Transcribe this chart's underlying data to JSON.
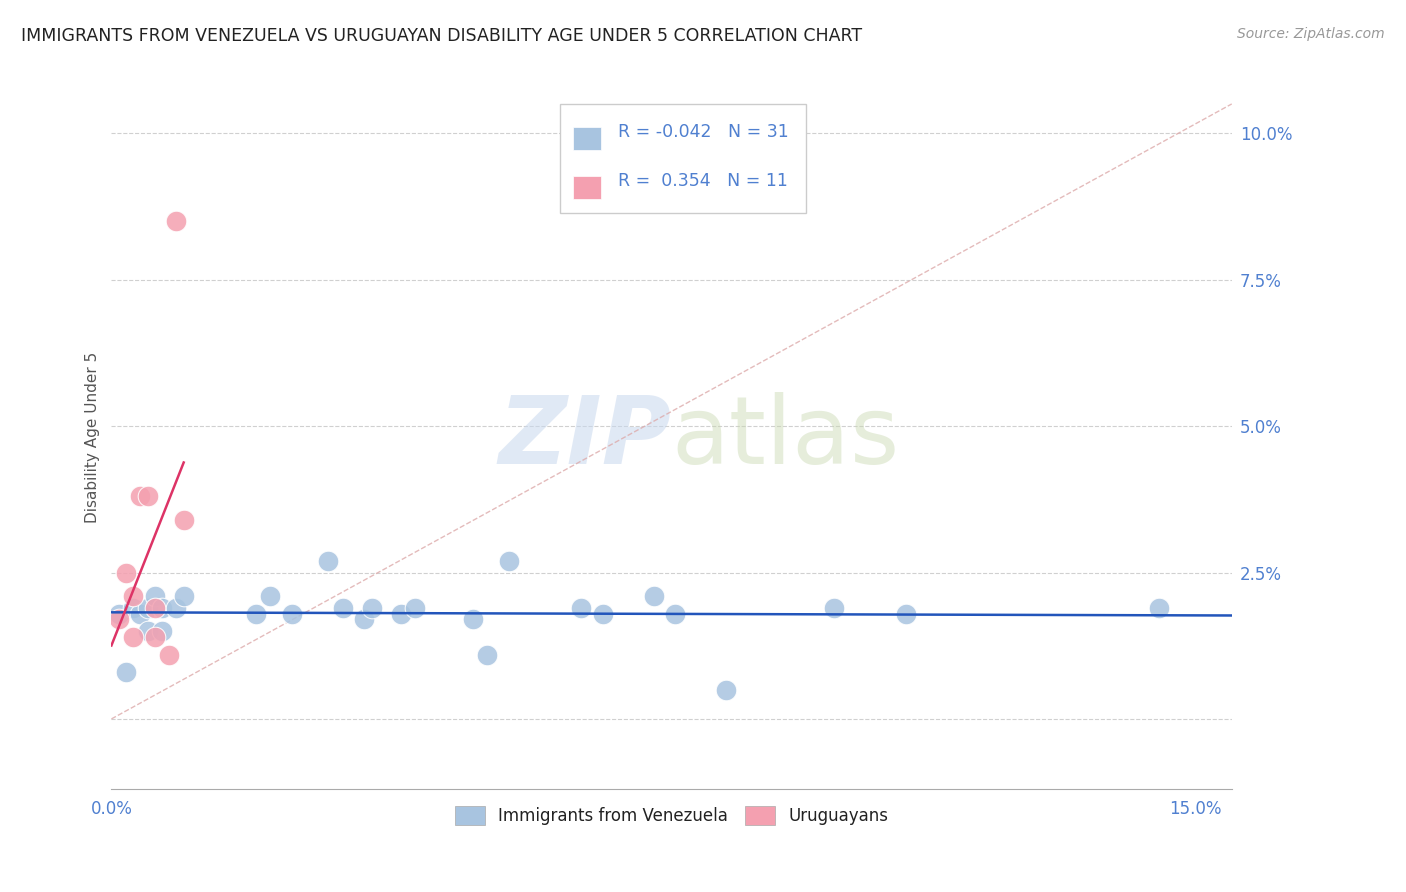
{
  "title": "IMMIGRANTS FROM VENEZUELA VS URUGUAYAN DISABILITY AGE UNDER 5 CORRELATION CHART",
  "source": "Source: ZipAtlas.com",
  "ylabel": "Disability Age Under 5",
  "xlim": [
    0.0,
    0.155
  ],
  "ylim": [
    -0.012,
    0.108
  ],
  "yticks": [
    0.0,
    0.025,
    0.05,
    0.075,
    0.1
  ],
  "ytick_labels": [
    "",
    "2.5%",
    "5.0%",
    "7.5%",
    "10.0%"
  ],
  "xticks": [
    0.0,
    0.025,
    0.05,
    0.075,
    0.1,
    0.125,
    0.15
  ],
  "xtick_labels": [
    "0.0%",
    "",
    "",
    "",
    "",
    "",
    "15.0%"
  ],
  "blue_R": -0.042,
  "blue_N": 31,
  "pink_R": 0.354,
  "pink_N": 11,
  "blue_color": "#a8c4e0",
  "pink_color": "#f4a0b0",
  "blue_line_color": "#2255bb",
  "pink_line_color": "#dd3366",
  "legend_blue_label": "Immigrants from Venezuela",
  "legend_pink_label": "Uruguayans",
  "blue_points": [
    [
      0.001,
      0.018
    ],
    [
      0.002,
      0.008
    ],
    [
      0.003,
      0.019
    ],
    [
      0.004,
      0.018
    ],
    [
      0.005,
      0.019
    ],
    [
      0.005,
      0.015
    ],
    [
      0.006,
      0.021
    ],
    [
      0.007,
      0.019
    ],
    [
      0.007,
      0.015
    ],
    [
      0.009,
      0.019
    ],
    [
      0.01,
      0.021
    ],
    [
      0.02,
      0.018
    ],
    [
      0.022,
      0.021
    ],
    [
      0.025,
      0.018
    ],
    [
      0.03,
      0.027
    ],
    [
      0.032,
      0.019
    ],
    [
      0.035,
      0.017
    ],
    [
      0.036,
      0.019
    ],
    [
      0.04,
      0.018
    ],
    [
      0.042,
      0.019
    ],
    [
      0.05,
      0.017
    ],
    [
      0.052,
      0.011
    ],
    [
      0.055,
      0.027
    ],
    [
      0.065,
      0.019
    ],
    [
      0.068,
      0.018
    ],
    [
      0.075,
      0.021
    ],
    [
      0.078,
      0.018
    ],
    [
      0.085,
      0.005
    ],
    [
      0.1,
      0.019
    ],
    [
      0.11,
      0.018
    ],
    [
      0.145,
      0.019
    ]
  ],
  "pink_points": [
    [
      0.001,
      0.017
    ],
    [
      0.002,
      0.025
    ],
    [
      0.003,
      0.021
    ],
    [
      0.003,
      0.014
    ],
    [
      0.004,
      0.038
    ],
    [
      0.005,
      0.038
    ],
    [
      0.006,
      0.019
    ],
    [
      0.006,
      0.014
    ],
    [
      0.008,
      0.011
    ],
    [
      0.009,
      0.085
    ],
    [
      0.01,
      0.034
    ]
  ],
  "watermark_zip": "ZIP",
  "watermark_atlas": "atlas",
  "background_color": "#ffffff",
  "title_fontsize": 12.5,
  "axis_label_fontsize": 11,
  "tick_fontsize": 12,
  "tick_color": "#5080d0",
  "title_color": "#222222",
  "grid_color": "#d0d0d0",
  "legend_text_color": "#5080d0"
}
